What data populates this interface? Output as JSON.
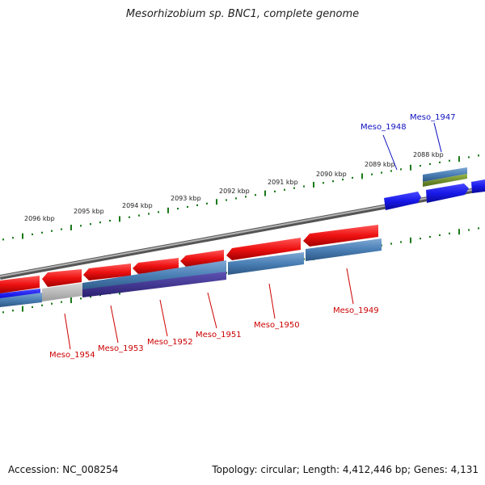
{
  "title": "Mesorhizobium sp. BNC1, complete genome",
  "footer": {
    "accession": "Accession: NC_008254",
    "stats": "Topology: circular; Length: 4,412,446 bp; Genes: 4,131"
  },
  "ruler": {
    "labels": [
      "2096 kbp",
      "2095 kbp",
      "2094 kbp",
      "2093 kbp",
      "2092 kbp",
      "2091 kbp",
      "2090 kbp",
      "2089 kbp",
      "2088 kbp"
    ]
  },
  "genes_forward": [
    "Meso_1948",
    "Meso_1947"
  ],
  "genes_reverse": [
    "Meso_1954",
    "Meso_1953",
    "Meso_1952",
    "Meso_1951",
    "Meso_1950",
    "Meso_1949"
  ],
  "colors": {
    "forward_label": "#1010c0",
    "reverse_label": "#cc0000",
    "cds_red": "#ee1111",
    "cds_blue": "#1818e8",
    "feature_steel": "#4a7fb5",
    "feature_purple": "#3a2f8a",
    "feature_green": "#6b8e23",
    "feature_grey": "#b8b8b8",
    "tick_green": "#1a7a1a",
    "backbone": "#8a8a8a"
  }
}
